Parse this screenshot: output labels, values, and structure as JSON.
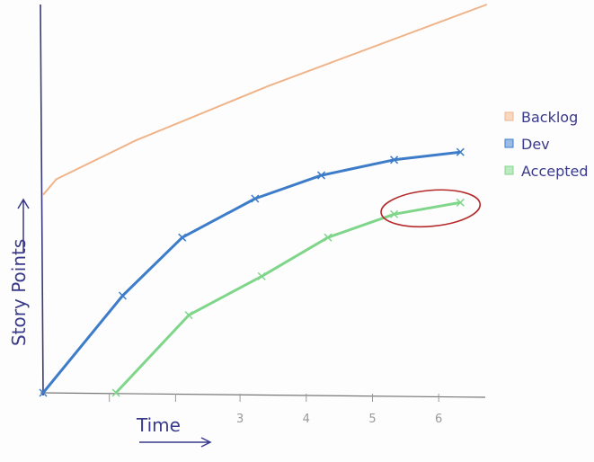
{
  "chart_data": {
    "type": "line",
    "title": "",
    "xlabel": "Time",
    "ylabel": "Story Points",
    "xlim": [
      0,
      6.8
    ],
    "ylim": [
      0,
      100
    ],
    "x_ticks": [
      1,
      2,
      3,
      4,
      5,
      6
    ],
    "x_tick_labels": [
      "",
      "",
      "3",
      "4",
      "5",
      "6"
    ],
    "grid": false,
    "legend_position": "right",
    "series": [
      {
        "name": "Backlog",
        "color": "#f0b48a",
        "markers": false,
        "points": [
          [
            0,
            51
          ],
          [
            0.2,
            55
          ],
          [
            1.4,
            65
          ],
          [
            3.4,
            79
          ],
          [
            6.7,
            100
          ]
        ]
      },
      {
        "name": "Dev",
        "color": "#3d7cc9",
        "markers": true,
        "points": [
          [
            0,
            0
          ],
          [
            1.2,
            25
          ],
          [
            2.1,
            40
          ],
          [
            3.2,
            50
          ],
          [
            4.2,
            56
          ],
          [
            5.3,
            60
          ],
          [
            6.3,
            62
          ]
        ]
      },
      {
        "name": "Accepted",
        "color": "#7fd68a",
        "markers": true,
        "points": [
          [
            1.1,
            0
          ],
          [
            2.2,
            20
          ],
          [
            3.3,
            30
          ],
          [
            4.3,
            40
          ],
          [
            5.3,
            46
          ],
          [
            6.3,
            49
          ]
        ]
      }
    ],
    "annotations": [
      {
        "type": "ellipse",
        "color": "#b52a2a",
        "series": "Accepted",
        "x_range": [
          5.1,
          6.6
        ]
      }
    ],
    "axis_color": "#3a3a7a",
    "label_color": "#3a3a8a",
    "tick_color": "#999999"
  }
}
